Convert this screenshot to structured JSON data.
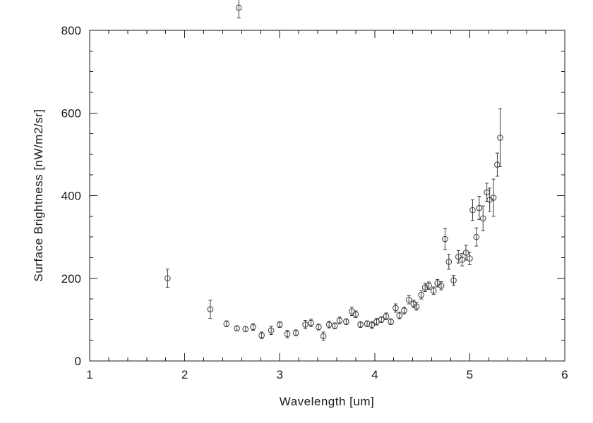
{
  "colors": {
    "background": "#ffffff",
    "axis": "#1a1a1a",
    "data": "#3a3a3a"
  },
  "chart_data": {
    "type": "scatter",
    "title": "",
    "xlabel": "Wavelength [um]",
    "ylabel": "Surface Brightness [nW/m2/sr]",
    "xlim": [
      1,
      6
    ],
    "ylim": [
      0,
      800
    ],
    "xticks": [
      1,
      2,
      3,
      4,
      5,
      6
    ],
    "yticks": [
      0,
      200,
      400,
      600,
      800
    ],
    "x_minor_interval": 0.2,
    "y_minor_interval": 50,
    "grid": false,
    "legend": "none",
    "marker": "open-circle",
    "error_bars": true,
    "clip": false,
    "points": [
      [
        1.82,
        200,
        22
      ],
      [
        2.27,
        125,
        22
      ],
      [
        2.44,
        90,
        7
      ],
      [
        2.55,
        79,
        6
      ],
      [
        2.57,
        855,
        25
      ],
      [
        2.64,
        77,
        6
      ],
      [
        2.72,
        82,
        8
      ],
      [
        2.81,
        62,
        8
      ],
      [
        2.91,
        74,
        10
      ],
      [
        3.0,
        88,
        7
      ],
      [
        3.08,
        65,
        9
      ],
      [
        3.17,
        68,
        7
      ],
      [
        3.27,
        88,
        10
      ],
      [
        3.33,
        92,
        9
      ],
      [
        3.41,
        82,
        7
      ],
      [
        3.46,
        60,
        10
      ],
      [
        3.52,
        88,
        8
      ],
      [
        3.58,
        85,
        7
      ],
      [
        3.63,
        98,
        8
      ],
      [
        3.7,
        95,
        7
      ],
      [
        3.76,
        120,
        10
      ],
      [
        3.8,
        113,
        8
      ],
      [
        3.85,
        88,
        7
      ],
      [
        3.92,
        90,
        7
      ],
      [
        3.97,
        87,
        8
      ],
      [
        4.02,
        95,
        8
      ],
      [
        4.07,
        100,
        7
      ],
      [
        4.12,
        108,
        8
      ],
      [
        4.17,
        95,
        7
      ],
      [
        4.22,
        128,
        10
      ],
      [
        4.26,
        110,
        8
      ],
      [
        4.31,
        122,
        8
      ],
      [
        4.36,
        148,
        10
      ],
      [
        4.41,
        138,
        9
      ],
      [
        4.44,
        132,
        9
      ],
      [
        4.49,
        160,
        10
      ],
      [
        4.53,
        178,
        10
      ],
      [
        4.57,
        182,
        9
      ],
      [
        4.62,
        170,
        9
      ],
      [
        4.66,
        188,
        9
      ],
      [
        4.7,
        182,
        10
      ],
      [
        4.74,
        295,
        25
      ],
      [
        4.78,
        240,
        18
      ],
      [
        4.83,
        195,
        12
      ],
      [
        4.88,
        252,
        15
      ],
      [
        4.92,
        245,
        15
      ],
      [
        4.96,
        262,
        18
      ],
      [
        5.0,
        248,
        15
      ],
      [
        5.03,
        365,
        25
      ],
      [
        5.07,
        300,
        22
      ],
      [
        5.1,
        370,
        28
      ],
      [
        5.14,
        345,
        30
      ],
      [
        5.18,
        408,
        22
      ],
      [
        5.21,
        390,
        28
      ],
      [
        5.25,
        395,
        45
      ],
      [
        5.29,
        475,
        28
      ],
      [
        5.32,
        540,
        70
      ]
    ]
  }
}
